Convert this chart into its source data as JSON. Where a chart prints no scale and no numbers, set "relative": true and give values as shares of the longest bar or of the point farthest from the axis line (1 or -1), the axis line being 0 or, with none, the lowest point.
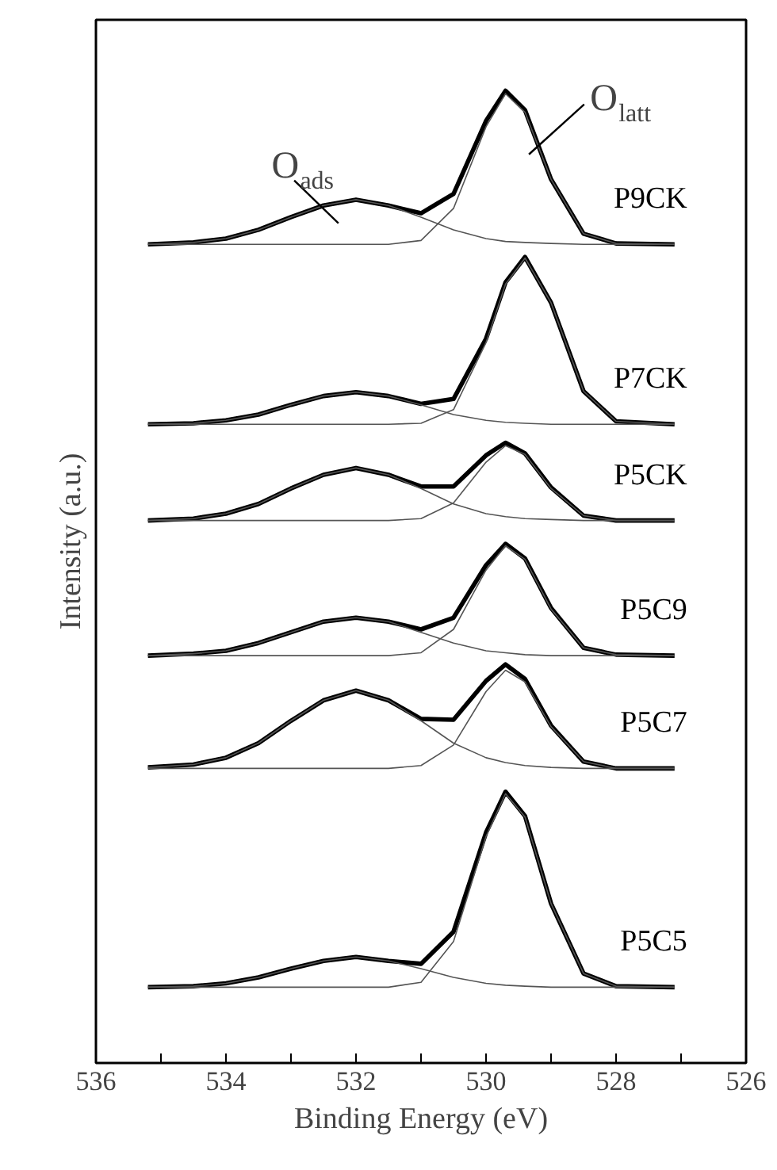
{
  "chart_data": {
    "type": "line",
    "relative": true,
    "xlabel": "Binding Energy (eV)",
    "ylabel": "Intensity (a.u.)",
    "xlim": [
      536,
      526
    ],
    "xticks": [
      536,
      {
        "value": 535,
        "label": null
      },
      534,
      {
        "value": 533,
        "label": null
      },
      532,
      {
        "value": 531,
        "label": null
      },
      530,
      {
        "value": 529,
        "label": null
      },
      528,
      {
        "value": 527,
        "label": null
      },
      526
    ],
    "grid": false,
    "legend": false,
    "x": [
      535.2,
      534.5,
      534,
      533.5,
      533,
      532.5,
      532,
      531.5,
      531,
      530.5,
      530,
      529.7,
      529.4,
      529,
      528.5,
      528,
      527.1
    ],
    "series": [
      {
        "name": "P9CK",
        "color": "#000000",
        "values": [
          0.842,
          0.844,
          0.848,
          0.857,
          0.87,
          0.882,
          0.888,
          0.882,
          0.874,
          0.894,
          0.969,
          1.0,
          0.98,
          0.909,
          0.853,
          0.843,
          0.842
        ]
      },
      {
        "color": "#555555",
        "values": [
          0.842,
          0.844,
          0.848,
          0.857,
          0.87,
          0.882,
          0.888,
          0.882,
          0.87,
          0.857,
          0.848,
          0.845,
          0.844,
          0.843,
          0.842,
          0.842,
          0.842
        ]
      },
      {
        "color": "#555555",
        "values": [
          0.842,
          0.842,
          0.842,
          0.842,
          0.842,
          0.842,
          0.842,
          0.842,
          0.846,
          0.879,
          0.963,
          0.997,
          0.978,
          0.909,
          0.853,
          0.843,
          0.842
        ]
      },
      {
        "name": "P7CK",
        "color": "#000000",
        "values": [
          0.657,
          0.658,
          0.661,
          0.667,
          0.677,
          0.686,
          0.69,
          0.686,
          0.678,
          0.683,
          0.745,
          0.803,
          0.829,
          0.782,
          0.691,
          0.66,
          0.657
        ]
      },
      {
        "color": "#555555",
        "values": [
          0.657,
          0.658,
          0.661,
          0.667,
          0.677,
          0.686,
          0.69,
          0.686,
          0.677,
          0.667,
          0.661,
          0.659,
          0.658,
          0.657,
          0.657,
          0.657,
          0.657
        ]
      },
      {
        "color": "#555555",
        "values": [
          0.657,
          0.657,
          0.657,
          0.657,
          0.657,
          0.657,
          0.657,
          0.657,
          0.658,
          0.672,
          0.741,
          0.801,
          0.828,
          0.782,
          0.691,
          0.66,
          0.657
        ]
      },
      {
        "name": "P5CK",
        "color": "#000000",
        "values": [
          0.558,
          0.56,
          0.565,
          0.575,
          0.591,
          0.605,
          0.612,
          0.605,
          0.593,
          0.593,
          0.625,
          0.638,
          0.627,
          0.592,
          0.563,
          0.558,
          0.558
        ]
      },
      {
        "color": "#555555",
        "values": [
          0.558,
          0.56,
          0.565,
          0.575,
          0.591,
          0.605,
          0.612,
          0.605,
          0.591,
          0.575,
          0.565,
          0.562,
          0.56,
          0.559,
          0.558,
          0.558,
          0.558
        ]
      },
      {
        "color": "#555555",
        "values": [
          0.558,
          0.558,
          0.558,
          0.558,
          0.558,
          0.558,
          0.558,
          0.558,
          0.56,
          0.576,
          0.618,
          0.635,
          0.626,
          0.591,
          0.563,
          0.558,
          0.558
        ]
      },
      {
        "name": "P5C9",
        "color": "#000000",
        "values": [
          0.419,
          0.421,
          0.424,
          0.432,
          0.443,
          0.454,
          0.458,
          0.454,
          0.446,
          0.458,
          0.512,
          0.534,
          0.519,
          0.468,
          0.427,
          0.42,
          0.419
        ]
      },
      {
        "color": "#555555",
        "values": [
          0.419,
          0.421,
          0.424,
          0.432,
          0.443,
          0.454,
          0.458,
          0.454,
          0.443,
          0.432,
          0.424,
          0.422,
          0.42,
          0.419,
          0.419,
          0.419,
          0.419
        ]
      },
      {
        "color": "#555555",
        "values": [
          0.419,
          0.419,
          0.419,
          0.419,
          0.419,
          0.419,
          0.419,
          0.419,
          0.422,
          0.446,
          0.507,
          0.532,
          0.518,
          0.467,
          0.427,
          0.42,
          0.419
        ]
      },
      {
        "name": "P5C7",
        "color": "#000000",
        "values": [
          0.304,
          0.307,
          0.314,
          0.329,
          0.352,
          0.373,
          0.383,
          0.373,
          0.354,
          0.353,
          0.393,
          0.41,
          0.395,
          0.347,
          0.31,
          0.303,
          0.303
        ]
      },
      {
        "color": "#555555",
        "values": [
          0.304,
          0.307,
          0.314,
          0.329,
          0.352,
          0.373,
          0.383,
          0.373,
          0.352,
          0.329,
          0.314,
          0.309,
          0.306,
          0.304,
          0.303,
          0.303,
          0.303
        ]
      },
      {
        "color": "#555555",
        "values": [
          0.303,
          0.303,
          0.303,
          0.303,
          0.303,
          0.303,
          0.303,
          0.303,
          0.306,
          0.327,
          0.382,
          0.404,
          0.392,
          0.346,
          0.31,
          0.303,
          0.303
        ]
      },
      {
        "name": "P5C5",
        "color": "#000000",
        "values": [
          0.078,
          0.079,
          0.082,
          0.088,
          0.097,
          0.105,
          0.109,
          0.105,
          0.102,
          0.135,
          0.237,
          0.279,
          0.254,
          0.164,
          0.092,
          0.079,
          0.078
        ]
      },
      {
        "color": "#555555",
        "values": [
          0.078,
          0.079,
          0.082,
          0.088,
          0.097,
          0.105,
          0.109,
          0.105,
          0.097,
          0.088,
          0.082,
          0.08,
          0.079,
          0.078,
          0.078,
          0.078,
          0.078
        ]
      },
      {
        "color": "#555555",
        "values": [
          0.078,
          0.078,
          0.078,
          0.078,
          0.078,
          0.078,
          0.078,
          0.078,
          0.083,
          0.125,
          0.233,
          0.277,
          0.253,
          0.164,
          0.092,
          0.079,
          0.078
        ]
      }
    ],
    "annotations": [
      "O$_{ads}$",
      "O$_{latt}$"
    ]
  }
}
